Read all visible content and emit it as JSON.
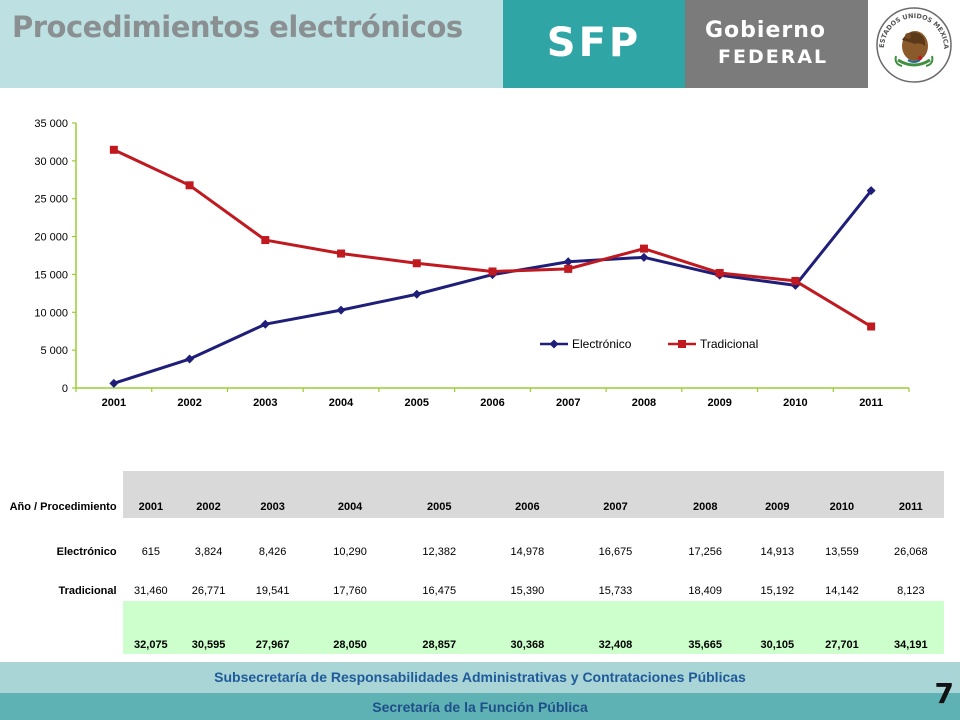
{
  "header": {
    "title": "Procedimientos electrónicos",
    "sfp_label": "SFP",
    "gobierno_line1": "Gobierno",
    "gobierno_line2": "FEDERAL",
    "seal_text": "ESTADOS UNIDOS MEXICANOS"
  },
  "chart_data": {
    "type": "line",
    "x": [
      "2001",
      "2002",
      "2003",
      "2004",
      "2005",
      "2006",
      "2007",
      "2008",
      "2009",
      "2010",
      "2011"
    ],
    "ylim": [
      0,
      35000
    ],
    "yticks": [
      0,
      5000,
      10000,
      15000,
      20000,
      25000,
      30000,
      35000
    ],
    "ytick_labels": [
      "0",
      "5 000",
      "10 000",
      "15 000",
      "20 000",
      "25 000",
      "30 000",
      "35 000"
    ],
    "legend_position": "inside-lower-right",
    "series": [
      {
        "name": "Electrónico",
        "color": "#1f1f7a",
        "marker": "diamond",
        "values": [
          615,
          3824,
          8426,
          10290,
          12382,
          14978,
          16675,
          17256,
          14913,
          13559,
          26068
        ]
      },
      {
        "name": "Tradicional",
        "color": "#c0191f",
        "marker": "square",
        "values": [
          31460,
          26771,
          19541,
          17760,
          16475,
          15390,
          15733,
          18409,
          15192,
          14142,
          8123
        ]
      }
    ],
    "axis_color": "#9acd32"
  },
  "table": {
    "header_label": "Año / Procedimiento",
    "years": [
      "2001",
      "2002",
      "2003",
      "2004",
      "2005",
      "2006",
      "2007",
      "2008",
      "2009",
      "2010",
      "2011"
    ],
    "rows": [
      {
        "label": "Electrónico",
        "values": [
          "615",
          "3,824",
          "8,426",
          "10,290",
          "12,382",
          "14,978",
          "16,675",
          "17,256",
          "14,913",
          "13,559",
          "26,068"
        ]
      },
      {
        "label": "Tradicional",
        "values": [
          "31,460",
          "26,771",
          "19,541",
          "17,760",
          "16,475",
          "15,390",
          "15,733",
          "18,409",
          "15,192",
          "14,142",
          "8,123"
        ]
      }
    ],
    "totals": [
      "32,075",
      "30,595",
      "27,967",
      "28,050",
      "28,857",
      "30,368",
      "32,408",
      "35,665",
      "30,105",
      "27,701",
      "34,191"
    ]
  },
  "footer": {
    "line1": "Subsecretaría de Responsabilidades Administrativas y Contrataciones Públicas",
    "line2": "Secretaría de la Función Pública",
    "page_number": "7"
  }
}
